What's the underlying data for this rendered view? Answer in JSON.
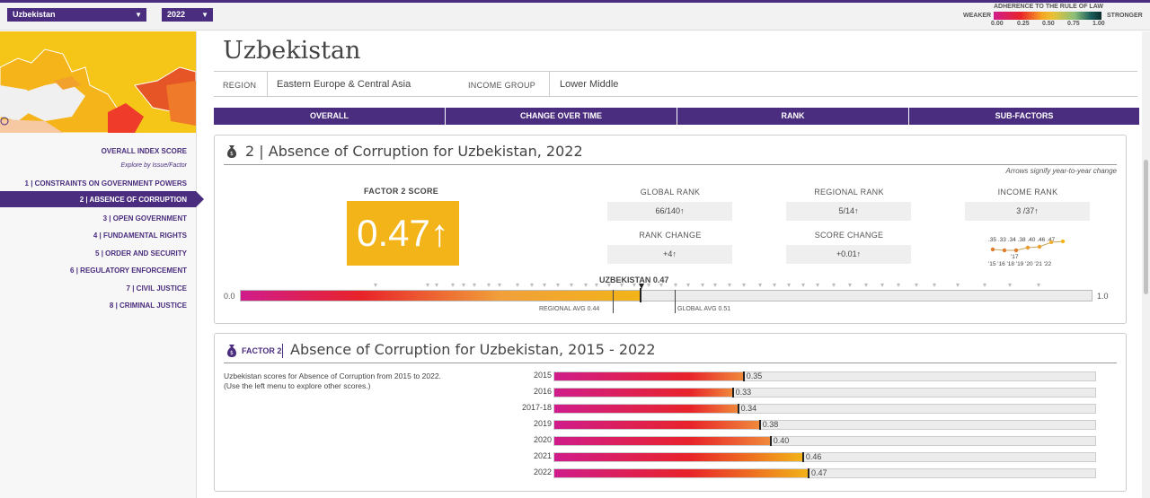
{
  "topbar": {
    "country_select": "Uzbekistan",
    "year_select": "2022",
    "legend_title": "ADHERENCE TO THE RULE OF LAW",
    "legend_weaker": "WEAKER",
    "legend_stronger": "STRONGER",
    "legend_ticks": [
      "0.00",
      "0.25",
      "0.50",
      "0.75",
      "1.00"
    ]
  },
  "sidebar": {
    "overall": "OVERALL INDEX SCORE",
    "explore": "Explore by Issue/Factor",
    "items": [
      "1 | CONSTRAINTS ON GOVERNMENT POWERS",
      "2 | ABSENCE OF CORRUPTION",
      "3 | OPEN GOVERNMENT",
      "4 | FUNDAMENTAL RIGHTS",
      "5 | ORDER AND SECURITY",
      "6 | REGULATORY ENFORCEMENT",
      "7 | CIVIL JUSTICE",
      "8 | CRIMINAL JUSTICE"
    ]
  },
  "header": {
    "country": "Uzbekistan",
    "region_label": "REGION",
    "region_value": "Eastern Europe & Central Asia",
    "income_label": "INCOME GROUP",
    "income_value": "Lower Middle"
  },
  "tabs": [
    "OVERALL",
    "CHANGE OVER TIME",
    "RANK",
    "SUB-FACTORS"
  ],
  "panel1": {
    "title": "2 | Absence of Corruption for Uzbekistan, 2022",
    "note": "Arrows signify year-to-year change",
    "factor_label": "FACTOR 2 SCORE",
    "score": "0.47↑",
    "global_rank_label": "GLOBAL RANK",
    "global_rank": "66/140↑",
    "regional_rank_label": "REGIONAL RANK",
    "regional_rank": "5/14↑",
    "income_rank_label": "INCOME RANK",
    "income_rank": "3 /37↑",
    "rank_change_label": "RANK CHANGE",
    "rank_change": "+4↑",
    "score_change_label": "SCORE CHANGE",
    "score_change": "+0.01↑",
    "spark_values": ".35 .33 .34 .38 .40 .46 .47",
    "spark_17": "'17",
    "spark_years": "'15 '16 '18 '19 '20 '21 '22",
    "scale_min": "0.0",
    "scale_max": "1.0",
    "country_marker": "UZBEKISTAN 0.47",
    "regional_avg": "REGIONAL AVG 0.44",
    "global_avg": "GLOBAL AVG 0.51"
  },
  "panel2": {
    "factor_tag": "FACTOR 2",
    "title": "Absence of Corruption for Uzbekistan, 2015 - 2022",
    "desc1": "Uzbekistan scores for Absence of Corruption from 2015 to 2022.",
    "desc2": "(Use the left menu to explore other scores.)"
  },
  "chart_data": {
    "type": "bar",
    "categories": [
      "2015",
      "2016",
      "2017-18",
      "2019",
      "2020",
      "2021",
      "2022"
    ],
    "values": [
      0.35,
      0.33,
      0.34,
      0.38,
      0.4,
      0.46,
      0.47
    ],
    "labels": [
      "0.35",
      "0.33",
      "0.34",
      "0.38",
      "0.40",
      "0.46",
      "0.47"
    ],
    "xlim": [
      0,
      1
    ],
    "orientation": "horizontal",
    "title": "Absence of Corruption for Uzbekistan, 2015 - 2022"
  },
  "colors": {
    "brand": "#4a2d7e",
    "score": "#f2b418"
  }
}
